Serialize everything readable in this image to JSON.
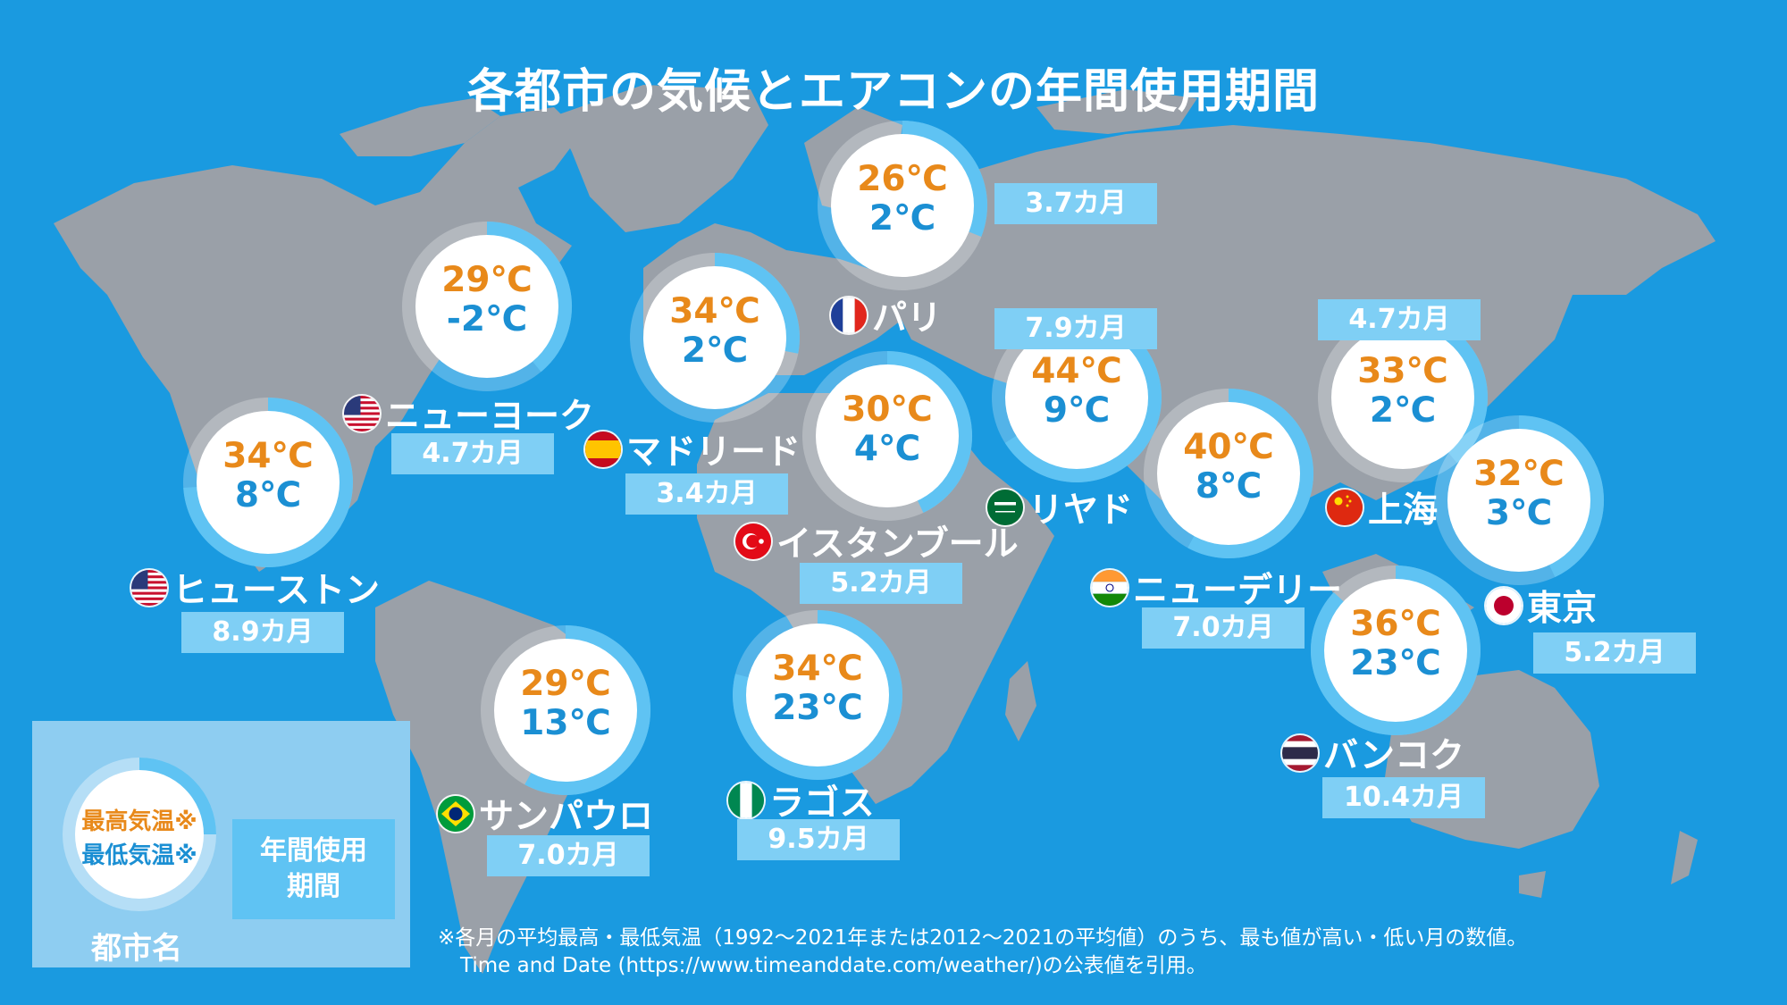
{
  "title": "各都市の気候とエアコンの年間使用期間",
  "colors": {
    "background": "#1a9ae0",
    "land": "#9aa0a8",
    "ring": "#5fc3f3",
    "high_temp": "#e8891a",
    "low_temp": "#1b8fd3",
    "period_box": "#7fcff5"
  },
  "cities": [
    {
      "name": "パリ",
      "high": "26℃",
      "low": "2℃",
      "period": "3.7カ月",
      "usage_fraction": 0.31,
      "flag": "france-flag"
    },
    {
      "name": "ニューヨーク",
      "high": "29℃",
      "low": "-2℃",
      "period": "4.7カ月",
      "usage_fraction": 0.39,
      "flag": "usa-flag"
    },
    {
      "name": "マドリード",
      "high": "34℃",
      "low": "2℃",
      "period": "3.4カ月",
      "usage_fraction": 0.28,
      "flag": "spain-flag"
    },
    {
      "name": "リヤド",
      "high": "44℃",
      "low": "9℃",
      "period": "7.9カ月",
      "usage_fraction": 0.66,
      "flag": "saudi-flag"
    },
    {
      "name": "上海",
      "high": "33℃",
      "low": "2℃",
      "period": "4.7カ月",
      "usage_fraction": 0.39,
      "flag": "china-flag"
    },
    {
      "name": "ヒューストン",
      "high": "34℃",
      "low": "8℃",
      "period": "8.9カ月",
      "usage_fraction": 0.74,
      "flag": "usa-flag"
    },
    {
      "name": "イスタンブール",
      "high": "30℃",
      "low": "4℃",
      "period": "5.2カ月",
      "usage_fraction": 0.43,
      "flag": "turkey-flag"
    },
    {
      "name": "ニューデリー",
      "high": "40℃",
      "low": "8℃",
      "period": "7.0カ月",
      "usage_fraction": 0.58,
      "flag": "india-flag"
    },
    {
      "name": "東京",
      "high": "32℃",
      "low": "3℃",
      "period": "5.2カ月",
      "usage_fraction": 0.43,
      "flag": "japan-flag"
    },
    {
      "name": "バンコク",
      "high": "36℃",
      "low": "23℃",
      "period": "10.4カ月",
      "usage_fraction": 0.87,
      "flag": "thailand-flag"
    },
    {
      "name": "サンパウロ",
      "high": "29℃",
      "low": "13℃",
      "period": "7.0カ月",
      "usage_fraction": 0.58,
      "flag": "brazil-flag"
    },
    {
      "name": "ラゴス",
      "high": "34℃",
      "low": "23℃",
      "period": "9.5カ月",
      "usage_fraction": 0.79,
      "flag": "nigeria-flag"
    }
  ],
  "legend": {
    "high": "最高気温※",
    "low": "最低気温※",
    "name": "都市名",
    "period_line1": "年間使用",
    "period_line2": "期間",
    "usage_fraction": 0.25
  },
  "footnote": {
    "line1": "※各月の平均最高・最低気温（1992～2021年または2012～2021の平均値）のうち、最も値が高い・低い月の数値。",
    "line2": "Time and Date (https://www.timeanddate.com/weather/)の公表値を引用。"
  }
}
